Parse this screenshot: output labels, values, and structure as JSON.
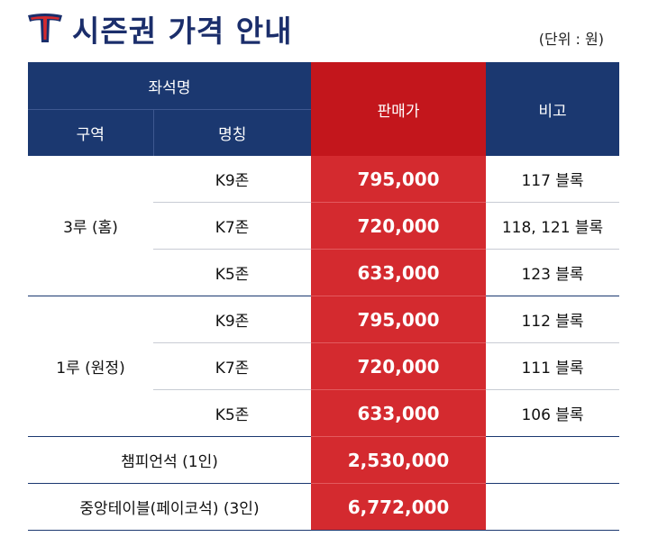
{
  "header": {
    "logo_icon": "team-t-logo-icon",
    "title": "시즌권 가격 안내",
    "unit": "(단위 : 원)"
  },
  "colors": {
    "navy": "#1b3870",
    "red": "#d42a2f",
    "dark_red": "#c3161c"
  },
  "table": {
    "header": {
      "seat_name": "좌석명",
      "zone": "구역",
      "name": "명칭",
      "price": "판매가",
      "note": "비고"
    },
    "groups": [
      {
        "zone": "3루 (홈)",
        "rows": [
          {
            "name": "K9존",
            "price": "795,000",
            "note": "117 블록"
          },
          {
            "name": "K7존",
            "price": "720,000",
            "note": "118, 121 블록"
          },
          {
            "name": "K5존",
            "price": "633,000",
            "note": "123 블록"
          }
        ]
      },
      {
        "zone": "1루 (원정)",
        "rows": [
          {
            "name": "K9존",
            "price": "795,000",
            "note": "112 블록"
          },
          {
            "name": "K7존",
            "price": "720,000",
            "note": "111 블록"
          },
          {
            "name": "K5존",
            "price": "633,000",
            "note": "106 블록"
          }
        ]
      }
    ],
    "special": [
      {
        "name": "챔피언석 (1인)",
        "price": "2,530,000",
        "note": ""
      },
      {
        "name": "중앙테이블(페이코석) (3인)",
        "price": "6,772,000",
        "note": ""
      }
    ]
  }
}
